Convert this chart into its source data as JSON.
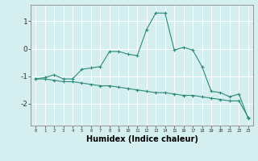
{
  "x": [
    0,
    1,
    2,
    3,
    4,
    5,
    6,
    7,
    8,
    9,
    10,
    11,
    12,
    13,
    14,
    15,
    16,
    17,
    18,
    19,
    20,
    21,
    22,
    23
  ],
  "line1_y": [
    -1.1,
    -1.05,
    -0.95,
    -1.1,
    -1.1,
    -0.75,
    -0.7,
    -0.65,
    -0.1,
    -0.1,
    -0.2,
    -0.25,
    0.7,
    1.3,
    1.3,
    -0.05,
    0.05,
    -0.05,
    -0.65,
    -1.55,
    -1.6,
    -1.75,
    -1.65,
    -2.55
  ],
  "line2_y": [
    -1.1,
    -1.1,
    -1.15,
    -1.2,
    -1.2,
    -1.25,
    -1.3,
    -1.35,
    -1.35,
    -1.4,
    -1.45,
    -1.5,
    -1.55,
    -1.6,
    -1.6,
    -1.65,
    -1.7,
    -1.7,
    -1.75,
    -1.8,
    -1.85,
    -1.9,
    -1.9,
    -2.5
  ],
  "bg_color": "#d5eef0",
  "line_color": "#2e8b77",
  "grid_color": "#ffffff",
  "xlabel": "Humidex (Indice chaleur)",
  "xlabel_fontsize": 7,
  "ylabel_ticks": [
    -2,
    -1,
    0,
    1
  ],
  "xlim": [
    -0.5,
    23.5
  ],
  "ylim": [
    -2.8,
    1.6
  ],
  "figsize": [
    3.2,
    2.0
  ],
  "dpi": 100
}
